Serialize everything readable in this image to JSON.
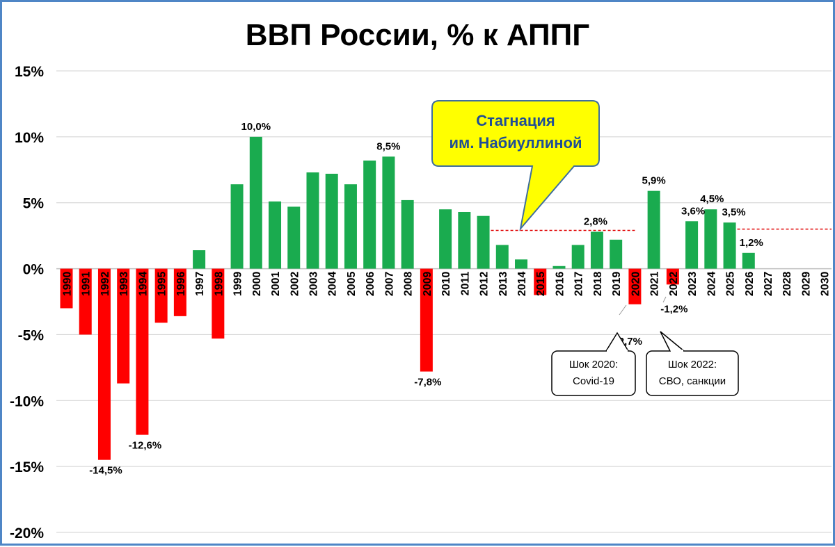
{
  "chart_data": {
    "type": "bar",
    "title": "ВВП России, % к АППГ",
    "xlabel": "",
    "ylabel": "",
    "ylim": [
      -20,
      15
    ],
    "y_ticks": [
      15,
      10,
      5,
      0,
      -5,
      -10,
      -15,
      -20
    ],
    "y_tick_labels": [
      "15%",
      "10%",
      "5%",
      "0%",
      "-5%",
      "-10%",
      "-15%",
      "-20%"
    ],
    "grid": true,
    "legend": "none",
    "colors": {
      "positive": "#1aab4f",
      "negative": "#ff0000",
      "reference": "#e00000"
    },
    "categories": [
      "1990",
      "1991",
      "1992",
      "1993",
      "1994",
      "1995",
      "1996",
      "1997",
      "1998",
      "1999",
      "2000",
      "2001",
      "2002",
      "2003",
      "2004",
      "2005",
      "2006",
      "2007",
      "2008",
      "2009",
      "2010",
      "2011",
      "2012",
      "2013",
      "2014",
      "2015",
      "2016",
      "2017",
      "2018",
      "2019",
      "2020",
      "2021",
      "2022",
      "2023",
      "2024",
      "2025",
      "2026",
      "2027",
      "2028",
      "2029",
      "2030"
    ],
    "values": [
      -3.0,
      -5.0,
      -14.5,
      -8.7,
      -12.6,
      -4.1,
      -3.6,
      1.4,
      -5.3,
      6.4,
      10.0,
      5.1,
      4.7,
      7.3,
      7.2,
      6.4,
      8.2,
      8.5,
      5.2,
      -7.8,
      4.5,
      4.3,
      4.0,
      1.8,
      0.7,
      -2.0,
      0.2,
      1.8,
      2.8,
      2.2,
      -2.7,
      5.9,
      -1.2,
      3.6,
      4.5,
      3.5,
      1.2,
      null,
      null,
      null,
      null
    ],
    "data_labels": [
      {
        "category": "1992",
        "text": "-14,5%"
      },
      {
        "category": "1994",
        "text": "-12,6%"
      },
      {
        "category": "2000",
        "text": "10,0%"
      },
      {
        "category": "2007",
        "text": "8,5%"
      },
      {
        "category": "2009",
        "text": "-7,8%"
      },
      {
        "category": "2018",
        "text": "2,8%"
      },
      {
        "category": "2020",
        "text": "-2,7%"
      },
      {
        "category": "2021",
        "text": "5,9%"
      },
      {
        "category": "2022",
        "text": "-1,2%"
      },
      {
        "category": "2023",
        "text": "3,6%"
      },
      {
        "category": "2024",
        "text": "4,5%"
      },
      {
        "category": "2025",
        "text": "3,5%"
      },
      {
        "category": "2026",
        "text": "1,2%"
      }
    ],
    "reference_lines": [
      {
        "from": "2012",
        "to": "2020",
        "value": 2.9
      },
      {
        "from": "2025",
        "to": "2030",
        "value": 3.0
      }
    ],
    "annotations": {
      "stagnation": [
        "Стагнация",
        "им. Набиуллиной"
      ],
      "shock_2020": [
        "Шок 2020:",
        "Covid-19"
      ],
      "shock_2022": [
        "Шок 2022:",
        "СВО, санкции"
      ]
    }
  }
}
